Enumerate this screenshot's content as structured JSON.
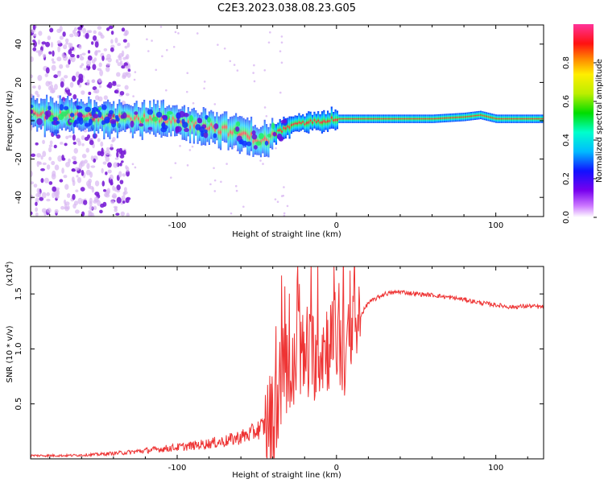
{
  "title": "C2E3.2023.038.08.23.G05",
  "colors": {
    "snr_line": "#ee3333",
    "band_core": "#e8343b",
    "band_edge": "#22ddcc",
    "scatter": "#7a1fd6",
    "scatter_faint": "#d9b8f2"
  },
  "chart_data": [
    {
      "type": "heatmap",
      "xlabel": "Height of straight line (km)",
      "ylabel": "Frequency (Hz)",
      "xlim": [
        -192,
        130
      ],
      "ylim": [
        -50,
        50
      ],
      "x_ticks": [
        -100,
        0,
        100
      ],
      "x_tick_labels": [
        "-100",
        "0",
        "100"
      ],
      "y_ticks": [
        -40,
        -20,
        0,
        20,
        40
      ],
      "y_tick_labels": [
        "-40",
        "-20",
        "0",
        "20",
        "40"
      ],
      "band_centerline": {
        "x": [
          -192,
          -140,
          -110,
          -80,
          -60,
          -45,
          -40,
          -30,
          -20,
          -10,
          0,
          20,
          40,
          60,
          80,
          90,
          100,
          130
        ],
        "freq": [
          3,
          2,
          0,
          -3,
          -7,
          -11,
          -7,
          -3,
          -1,
          0,
          1,
          1,
          1,
          1,
          2,
          3,
          1,
          1
        ]
      },
      "colorbar": {
        "label": "Normalized spectral amplitude",
        "range": [
          0,
          1
        ],
        "ticks": [
          0.0,
          0.2,
          0.4,
          0.6,
          0.8
        ],
        "tick_labels": [
          "0.0",
          "0.2",
          "0.4",
          "0.6",
          "0.8"
        ]
      }
    },
    {
      "type": "line",
      "xlabel": "Height of straight line (km)",
      "ylabel": "SNR (10 * v/v)",
      "y_scale_label": "(x10",
      "y_scale_exponent": "4",
      "y_scale_close": ")",
      "xlim": [
        -192,
        130
      ],
      "ylim": [
        0,
        1.75
      ],
      "x_ticks": [
        -100,
        0,
        100
      ],
      "x_tick_labels": [
        "-100",
        "0",
        "100"
      ],
      "y_ticks": [
        0.5,
        1.0,
        1.5
      ],
      "y_tick_labels": [
        "0.5",
        "1.0",
        "1.5"
      ],
      "series": [
        {
          "name": "SNR",
          "x": [
            -192,
            -170,
            -150,
            -130,
            -110,
            -90,
            -70,
            -55,
            -45,
            -40,
            -36,
            -32,
            -28,
            -24,
            -20,
            -15,
            -10,
            -5,
            0,
            5,
            10,
            15,
            20,
            30,
            40,
            50,
            60,
            70,
            80,
            90,
            100,
            110,
            120,
            130
          ],
          "values": [
            0.03,
            0.03,
            0.04,
            0.06,
            0.09,
            0.12,
            0.16,
            0.22,
            0.3,
            0.38,
            0.6,
            0.9,
            0.65,
            1.05,
            0.85,
            0.95,
            1.0,
            1.05,
            1.1,
            0.95,
            1.05,
            1.3,
            1.42,
            1.5,
            1.52,
            1.5,
            1.49,
            1.47,
            1.45,
            1.42,
            1.4,
            1.38,
            1.39,
            1.38
          ]
        }
      ]
    }
  ]
}
